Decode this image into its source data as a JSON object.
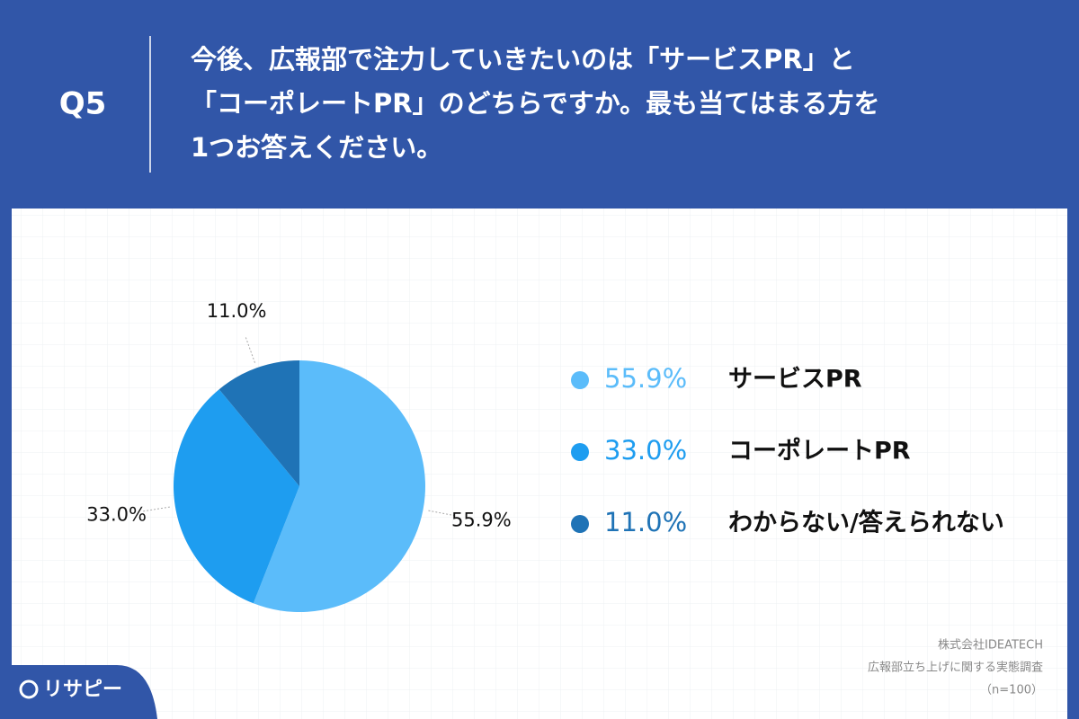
{
  "header": {
    "question": "Q5",
    "title_lines": [
      "今後、広報部で注力していきたいのは「サービスPR」と",
      "「コーポレートPR」のどちらですか。最も当てはまる方を",
      "1つお答えください。"
    ]
  },
  "chart_data": {
    "type": "pie",
    "categories": [
      "サービスPR",
      "コーポレートPR",
      "わからない/答えられない"
    ],
    "values": [
      55.9,
      33.0,
      11.0
    ],
    "value_labels": [
      "55.9%",
      "33.0%",
      "11.0%"
    ],
    "colors": [
      "#5bbcfa",
      "#1e9df0",
      "#1f73b6"
    ]
  },
  "footer": {
    "source_lines": [
      "株式会社IDEATECH",
      "広報部立ち上げに関する実態調査",
      "（n=100）"
    ],
    "logo": "リサピー"
  }
}
